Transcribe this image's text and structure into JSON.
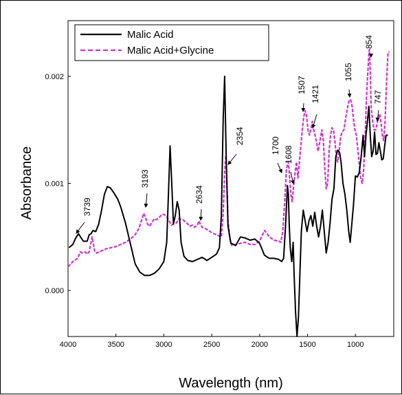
{
  "chart_data": {
    "type": "line",
    "xlabel": "Wavelength (nm)",
    "ylabel": "Absorbance",
    "xlim": [
      4000,
      600
    ],
    "ylim": [
      -0.00043,
      0.00252
    ],
    "x_ticks": [
      4000,
      3500,
      3000,
      2500,
      2000,
      1500,
      1000
    ],
    "x_tick_labels": [
      "4000",
      "3500",
      "3000",
      "2500",
      "2000",
      "1500",
      "1000"
    ],
    "y_ticks": [
      0.0,
      0.001,
      0.002
    ],
    "y_tick_labels": [
      "0.000",
      "0.001",
      "0.002"
    ],
    "legend_position": "top-left",
    "series": [
      {
        "name": "Malic Acid",
        "color": "#000000",
        "style": "solid",
        "points": [
          [
            3990,
            0.0004
          ],
          [
            3950,
            0.00043
          ],
          [
            3920,
            0.00049
          ],
          [
            3890,
            0.00053
          ],
          [
            3870,
            0.0005
          ],
          [
            3840,
            0.00046
          ],
          [
            3800,
            0.00046
          ],
          [
            3780,
            0.00052
          ],
          [
            3760,
            0.00053
          ],
          [
            3740,
            0.00056
          ],
          [
            3710,
            0.00055
          ],
          [
            3680,
            0.00062
          ],
          [
            3650,
            0.00075
          ],
          [
            3620,
            0.0009
          ],
          [
            3590,
            0.00097
          ],
          [
            3560,
            0.00096
          ],
          [
            3520,
            0.00091
          ],
          [
            3480,
            0.00085
          ],
          [
            3450,
            0.00078
          ],
          [
            3400,
            0.00063
          ],
          [
            3350,
            0.00044
          ],
          [
            3300,
            0.00025
          ],
          [
            3250,
            0.00017
          ],
          [
            3200,
            0.00014
          ],
          [
            3150,
            0.00014
          ],
          [
            3100,
            0.00016
          ],
          [
            3050,
            0.0002
          ],
          [
            3000,
            0.00027
          ],
          [
            2970,
            0.00045
          ],
          [
            2950,
            0.00095
          ],
          [
            2935,
            0.00135
          ],
          [
            2920,
            0.00105
          ],
          [
            2900,
            0.00062
          ],
          [
            2880,
            0.0007
          ],
          [
            2860,
            0.00083
          ],
          [
            2840,
            0.00075
          ],
          [
            2820,
            0.00045
          ],
          [
            2790,
            0.00032
          ],
          [
            2750,
            0.00028
          ],
          [
            2700,
            0.00027
          ],
          [
            2650,
            0.00029
          ],
          [
            2600,
            0.00031
          ],
          [
            2550,
            0.00028
          ],
          [
            2500,
            0.00031
          ],
          [
            2450,
            0.00034
          ],
          [
            2420,
            0.0004
          ],
          [
            2400,
            0.0007
          ],
          [
            2380,
            0.0016
          ],
          [
            2365,
            0.002
          ],
          [
            2350,
            0.0013
          ],
          [
            2330,
            0.0006
          ],
          [
            2300,
            0.00044
          ],
          [
            2250,
            0.00042
          ],
          [
            2200,
            0.0005
          ],
          [
            2150,
            0.00049
          ],
          [
            2100,
            0.00047
          ],
          [
            2050,
            0.00048
          ],
          [
            2000,
            0.00044
          ],
          [
            1950,
            0.00033
          ],
          [
            1900,
            0.0003
          ],
          [
            1850,
            0.0003
          ],
          [
            1800,
            0.00029
          ],
          [
            1770,
            0.00027
          ],
          [
            1750,
            0.0003
          ],
          [
            1730,
            0.0006
          ],
          [
            1710,
            0.00098
          ],
          [
            1700,
            0.0009
          ],
          [
            1690,
            0.0006
          ],
          [
            1680,
            0.0004
          ],
          [
            1665,
            0.00027
          ],
          [
            1650,
            0.00045
          ],
          [
            1640,
            0.00015
          ],
          [
            1625,
            -0.0002
          ],
          [
            1610,
            -0.00043
          ],
          [
            1595,
            -0.00025
          ],
          [
            1580,
            0.00015
          ],
          [
            1565,
            0.00055
          ],
          [
            1545,
            0.00075
          ],
          [
            1525,
            0.00065
          ],
          [
            1505,
            0.00055
          ],
          [
            1485,
            0.00065
          ],
          [
            1465,
            0.0007
          ],
          [
            1445,
            0.0006
          ],
          [
            1425,
            0.00073
          ],
          [
            1405,
            0.0006
          ],
          [
            1385,
            0.0005
          ],
          [
            1365,
            0.0006
          ],
          [
            1345,
            0.00075
          ],
          [
            1325,
            0.00055
          ],
          [
            1305,
            0.00035
          ],
          [
            1285,
            0.00045
          ],
          [
            1265,
            0.00063
          ],
          [
            1245,
            0.00085
          ],
          [
            1225,
            0.00095
          ],
          [
            1205,
            0.00125
          ],
          [
            1185,
            0.00131
          ],
          [
            1165,
            0.00129
          ],
          [
            1150,
            0.0012
          ],
          [
            1130,
            0.001
          ],
          [
            1110,
            0.0009
          ],
          [
            1090,
            0.00075
          ],
          [
            1070,
            0.00055
          ],
          [
            1055,
            0.00045
          ],
          [
            1040,
            0.0006
          ],
          [
            1020,
            0.0008
          ],
          [
            1000,
            0.00107
          ],
          [
            980,
            0.00106
          ],
          [
            960,
            0.0011
          ],
          [
            940,
            0.00125
          ],
          [
            920,
            0.00145
          ],
          [
            905,
            0.00125
          ],
          [
            890,
            0.00145
          ],
          [
            875,
            0.00158
          ],
          [
            860,
            0.00172
          ],
          [
            845,
            0.00145
          ],
          [
            830,
            0.00125
          ],
          [
            815,
            0.0013
          ],
          [
            800,
            0.00148
          ],
          [
            785,
            0.00127
          ],
          [
            770,
            0.00128
          ],
          [
            755,
            0.00138
          ],
          [
            740,
            0.0013
          ],
          [
            725,
            0.00122
          ],
          [
            710,
            0.00123
          ],
          [
            695,
            0.00135
          ],
          [
            680,
            0.00145
          ],
          [
            660,
            0.00145
          ]
        ]
      },
      {
        "name": "Malic Acid+Glycine",
        "color": "#cc33cc",
        "style": "dashed",
        "points": [
          [
            4000,
            0.00022
          ],
          [
            3950,
            0.00027
          ],
          [
            3900,
            0.0003
          ],
          [
            3870,
            0.00036
          ],
          [
            3850,
            0.00035
          ],
          [
            3820,
            0.00036
          ],
          [
            3800,
            0.00034
          ],
          [
            3780,
            0.00036
          ],
          [
            3760,
            0.00045
          ],
          [
            3750,
            0.0005
          ],
          [
            3740,
            0.00046
          ],
          [
            3720,
            0.00036
          ],
          [
            3700,
            0.00035
          ],
          [
            3650,
            0.00037
          ],
          [
            3600,
            0.00039
          ],
          [
            3550,
            0.0004
          ],
          [
            3500,
            0.00041
          ],
          [
            3450,
            0.00043
          ],
          [
            3400,
            0.00045
          ],
          [
            3350,
            0.00048
          ],
          [
            3300,
            0.00052
          ],
          [
            3260,
            0.00058
          ],
          [
            3230,
            0.00066
          ],
          [
            3210,
            0.00072
          ],
          [
            3190,
            0.00068
          ],
          [
            3170,
            0.00062
          ],
          [
            3150,
            0.0006
          ],
          [
            3120,
            0.00064
          ],
          [
            3100,
            0.00067
          ],
          [
            3080,
            0.00066
          ],
          [
            3050,
            0.00068
          ],
          [
            3020,
            0.00071
          ],
          [
            3000,
            0.00071
          ],
          [
            2980,
            0.0007
          ],
          [
            2950,
            0.00066
          ],
          [
            2920,
            0.00061
          ],
          [
            2900,
            0.00062
          ],
          [
            2870,
            0.00063
          ],
          [
            2840,
            0.00067
          ],
          [
            2800,
            0.00066
          ],
          [
            2760,
            0.00063
          ],
          [
            2730,
            0.0006
          ],
          [
            2700,
            0.00061
          ],
          [
            2680,
            0.00059
          ],
          [
            2650,
            0.00061
          ],
          [
            2634,
            0.00065
          ],
          [
            2620,
            0.00062
          ],
          [
            2600,
            0.00059
          ],
          [
            2550,
            0.00057
          ],
          [
            2500,
            0.00054
          ],
          [
            2450,
            0.00052
          ],
          [
            2400,
            0.0005
          ],
          [
            2380,
            0.00072
          ],
          [
            2365,
            0.0011
          ],
          [
            2354,
            0.00126
          ],
          [
            2345,
            0.0011
          ],
          [
            2330,
            0.00065
          ],
          [
            2310,
            0.00048
          ],
          [
            2290,
            0.00042
          ],
          [
            2250,
            0.00043
          ],
          [
            2200,
            0.00044
          ],
          [
            2150,
            0.00045
          ],
          [
            2100,
            0.00043
          ],
          [
            2050,
            0.00043
          ],
          [
            2000,
            0.00046
          ],
          [
            1970,
            0.00052
          ],
          [
            1950,
            0.00056
          ],
          [
            1930,
            0.00054
          ],
          [
            1900,
            0.0005
          ],
          [
            1850,
            0.00047
          ],
          [
            1800,
            0.00046
          ],
          [
            1780,
            0.00045
          ],
          [
            1760,
            0.00054
          ],
          [
            1740,
            0.0008
          ],
          [
            1720,
            0.00114
          ],
          [
            1700,
            0.0012
          ],
          [
            1690,
            0.0011
          ],
          [
            1675,
            0.0009
          ],
          [
            1660,
            0.00083
          ],
          [
            1645,
            0.00098
          ],
          [
            1630,
            0.0011
          ],
          [
            1615,
            0.0012
          ],
          [
            1600,
            0.00105
          ],
          [
            1585,
            0.0012
          ],
          [
            1570,
            0.00135
          ],
          [
            1555,
            0.0015
          ],
          [
            1540,
            0.00162
          ],
          [
            1525,
            0.00168
          ],
          [
            1510,
            0.00163
          ],
          [
            1495,
            0.0015
          ],
          [
            1480,
            0.00145
          ],
          [
            1465,
            0.0015
          ],
          [
            1450,
            0.00158
          ],
          [
            1435,
            0.0015
          ],
          [
            1421,
            0.00145
          ],
          [
            1405,
            0.00138
          ],
          [
            1390,
            0.0013
          ],
          [
            1370,
            0.0014
          ],
          [
            1350,
            0.0015
          ],
          [
            1335,
            0.0014
          ],
          [
            1320,
            0.00115
          ],
          [
            1305,
            0.00095
          ],
          [
            1290,
            0.001
          ],
          [
            1275,
            0.0013
          ],
          [
            1260,
            0.00145
          ],
          [
            1245,
            0.00152
          ],
          [
            1230,
            0.0015
          ],
          [
            1215,
            0.0014
          ],
          [
            1200,
            0.00125
          ],
          [
            1185,
            0.0012
          ],
          [
            1170,
            0.0013
          ],
          [
            1155,
            0.00143
          ],
          [
            1140,
            0.00148
          ],
          [
            1120,
            0.0015
          ],
          [
            1100,
            0.00162
          ],
          [
            1080,
            0.00172
          ],
          [
            1065,
            0.00178
          ],
          [
            1050,
            0.00178
          ],
          [
            1035,
            0.00172
          ],
          [
            1020,
            0.0016
          ],
          [
            1005,
            0.0015
          ],
          [
            990,
            0.00145
          ],
          [
            975,
            0.00132
          ],
          [
            960,
            0.00118
          ],
          [
            945,
            0.00105
          ],
          [
            930,
            0.001
          ],
          [
            915,
            0.00112
          ],
          [
            900,
            0.0014
          ],
          [
            885,
            0.0018
          ],
          [
            870,
            0.00205
          ],
          [
            860,
            0.00222
          ],
          [
            854,
            0.00225
          ],
          [
            845,
            0.00205
          ],
          [
            835,
            0.0017
          ],
          [
            820,
            0.00158
          ],
          [
            805,
            0.0015
          ],
          [
            790,
            0.0015
          ],
          [
            775,
            0.00155
          ],
          [
            760,
            0.00162
          ],
          [
            747,
            0.00165
          ],
          [
            735,
            0.00158
          ],
          [
            720,
            0.00145
          ],
          [
            705,
            0.0014
          ],
          [
            690,
            0.0016
          ],
          [
            675,
            0.00195
          ],
          [
            660,
            0.00222
          ],
          [
            645,
            0.00223
          ]
        ]
      }
    ],
    "annotations": [
      {
        "label": "3739",
        "x": 3739
      },
      {
        "label": "3193",
        "x": 3193
      },
      {
        "label": "2634",
        "x": 2634
      },
      {
        "label": "2354",
        "x": 2354
      },
      {
        "label": "1700",
        "x": 1700
      },
      {
        "label": "1608",
        "x": 1608
      },
      {
        "label": "1507",
        "x": 1507
      },
      {
        "label": "1421",
        "x": 1421
      },
      {
        "label": "1055",
        "x": 1055
      },
      {
        "label": "854",
        "x": 854
      },
      {
        "label": "747",
        "x": 747
      }
    ]
  }
}
